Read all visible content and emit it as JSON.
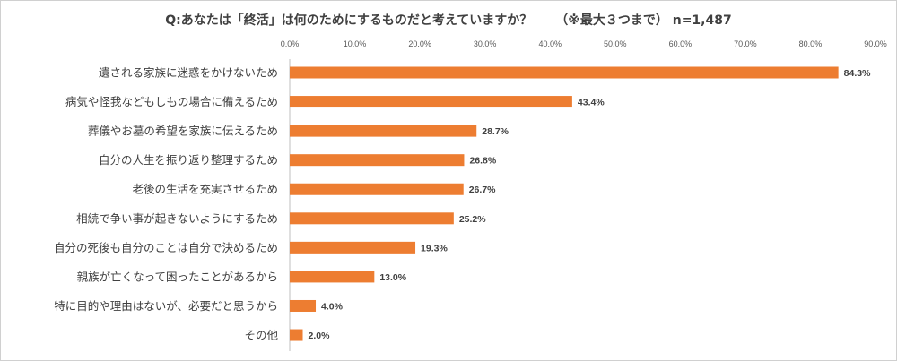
{
  "chart_data": {
    "type": "bar",
    "orientation": "horizontal",
    "title": "Q:あなたは「終活」は何のためにするものだと考えていますか？",
    "title_note": "（※最大３つまで）",
    "sample_size": "n=1,487",
    "bar_color": "#ED7D31",
    "xlim": [
      0,
      90
    ],
    "xticks": [
      0,
      10,
      20,
      30,
      40,
      50,
      60,
      70,
      80,
      90
    ],
    "xtick_labels": [
      "0.0%",
      "10.0%",
      "20.0%",
      "30.0%",
      "40.0%",
      "50.0%",
      "60.0%",
      "70.0%",
      "80.0%",
      "90.0%"
    ],
    "categories": [
      "遺される家族に迷惑をかけないため",
      "病気や怪我などもしもの場合に備えるため",
      "葬儀やお墓の希望を家族に伝えるため",
      "自分の人生を振り返り整理するため",
      "老後の生活を充実させるため",
      "相続で争い事が起きないようにするため",
      "自分の死後も自分のことは自分で決めるため",
      "親族が亡くなって困ったことがあるから",
      "特に目的や理由はないが、必要だと思うから",
      "その他"
    ],
    "values": [
      84.3,
      43.4,
      28.7,
      26.8,
      26.7,
      25.2,
      19.3,
      13.0,
      4.0,
      2.0
    ],
    "value_labels": [
      "84.3%",
      "43.4%",
      "28.7%",
      "26.8%",
      "26.7%",
      "25.2%",
      "19.3%",
      "13.0%",
      "4.0%",
      "2.0%"
    ],
    "xlabel": "",
    "ylabel": ""
  }
}
